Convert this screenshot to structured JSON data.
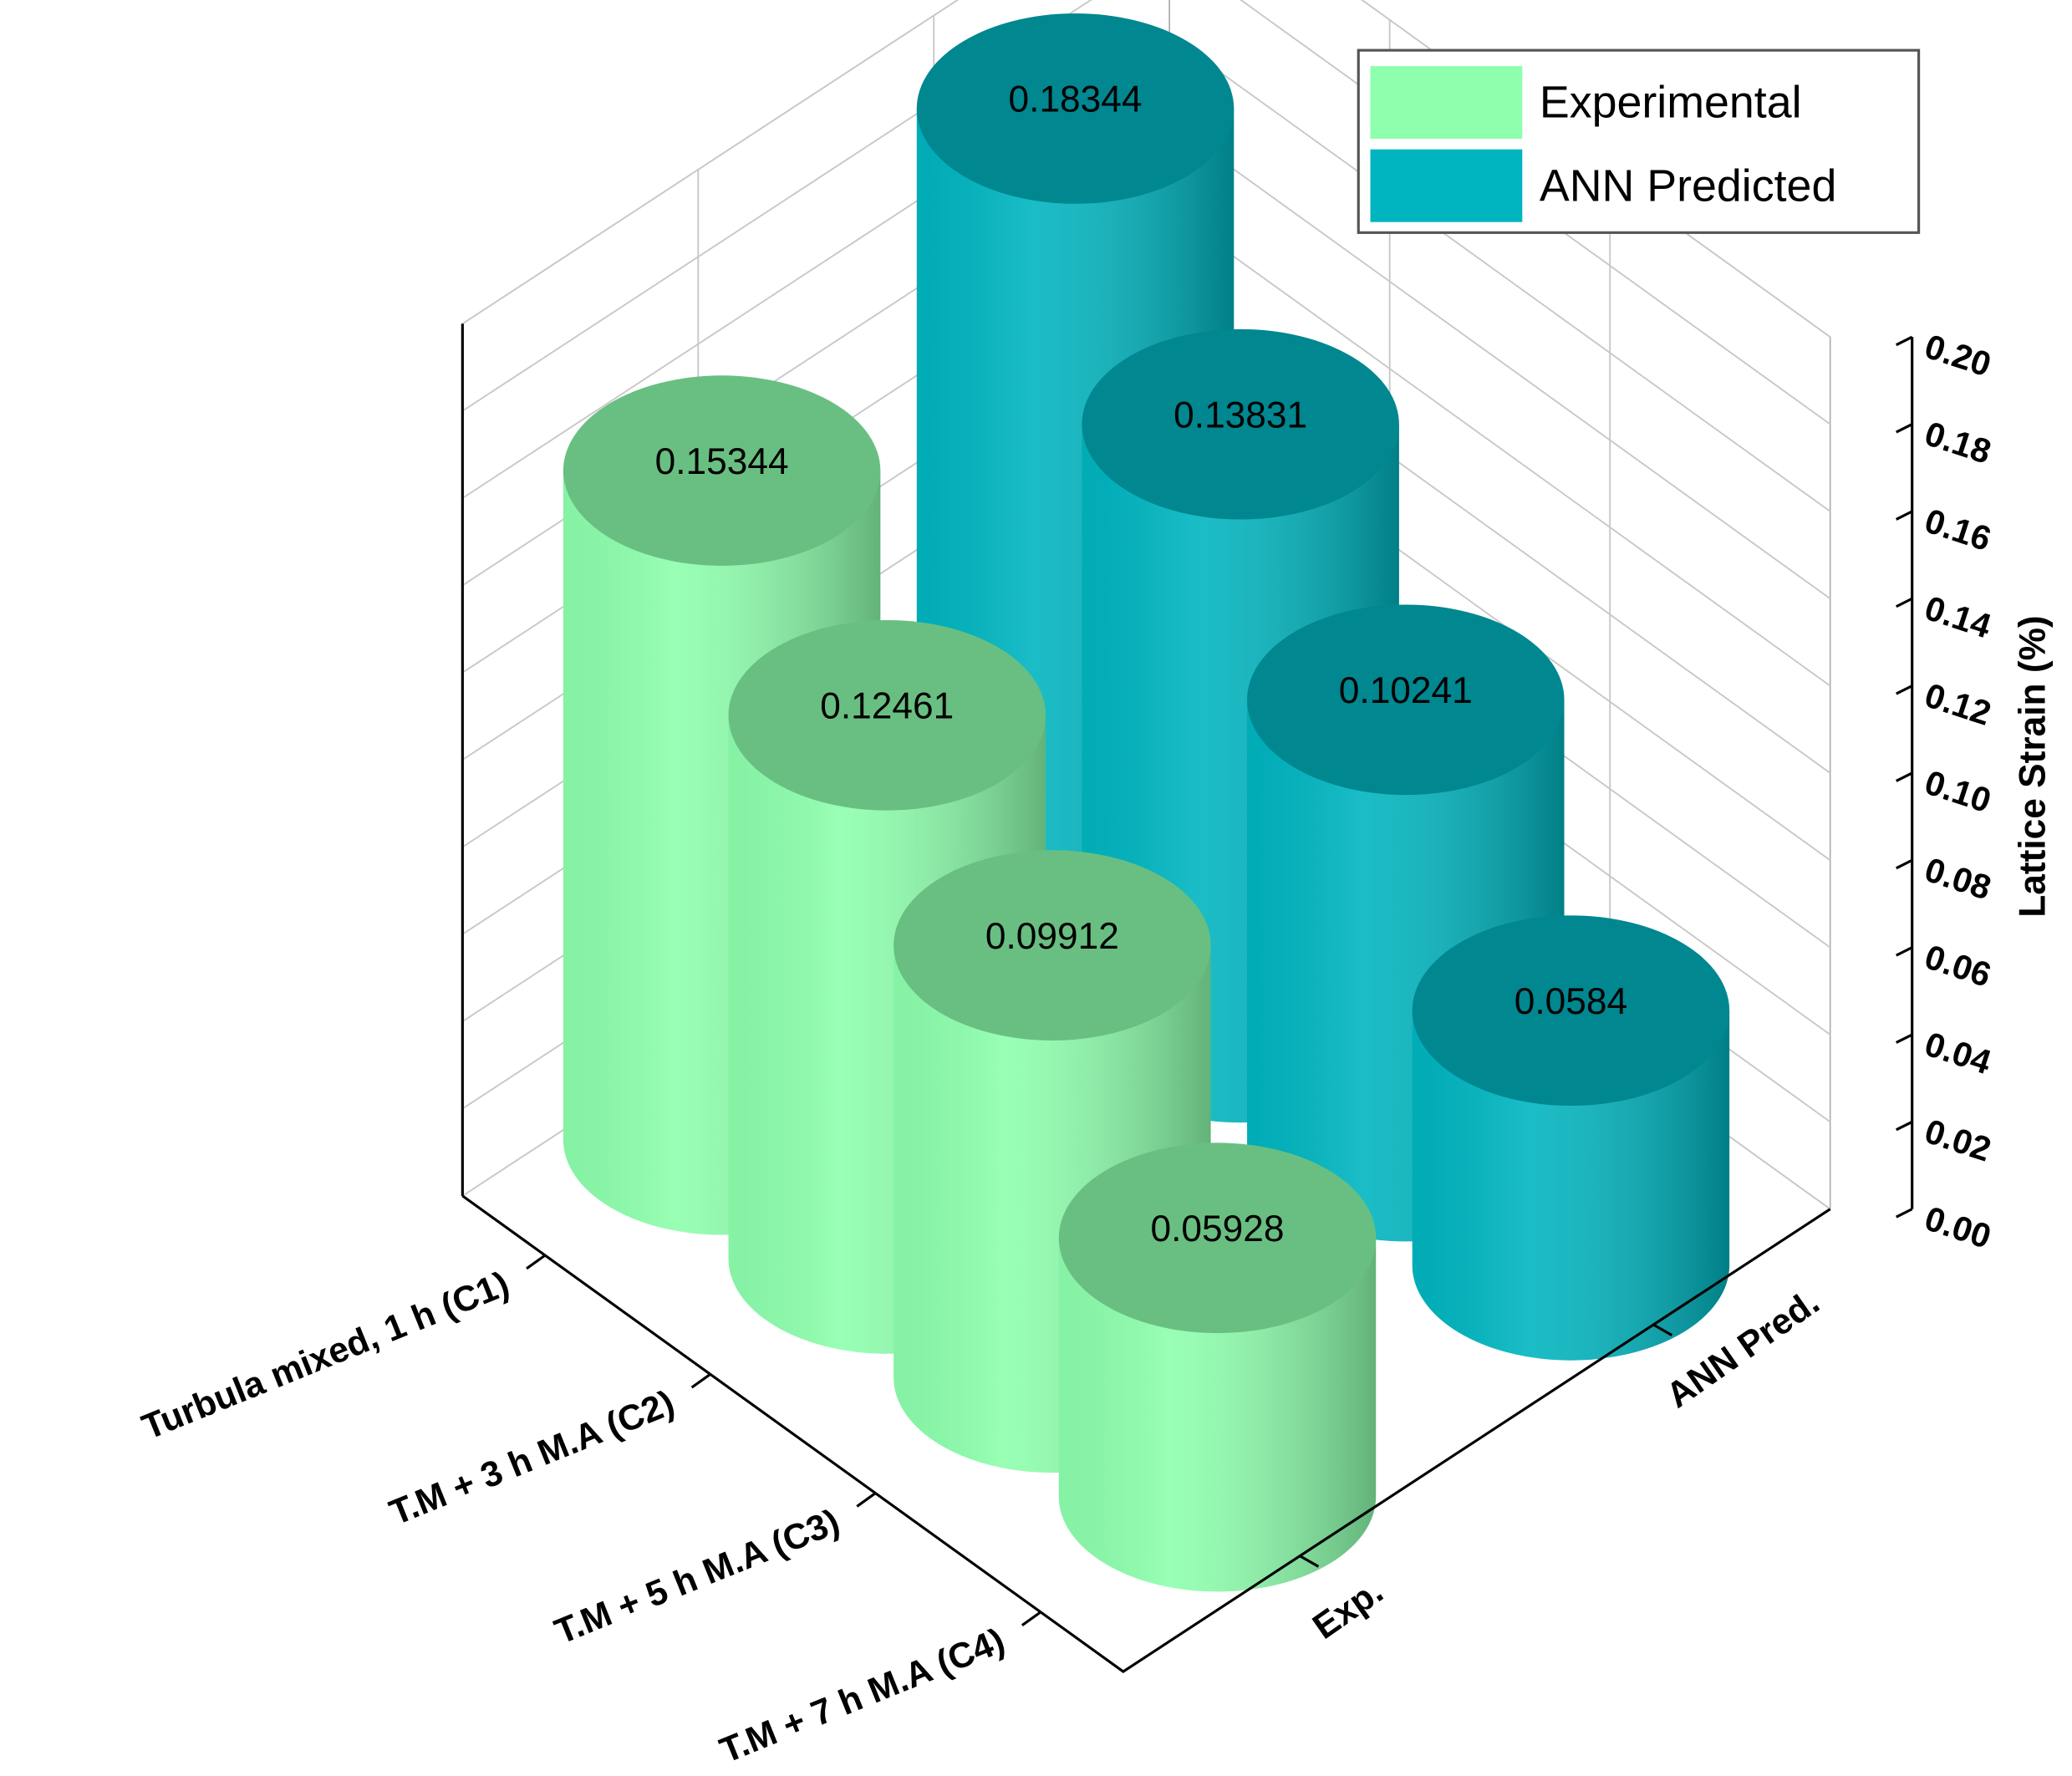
{
  "chart_data": {
    "type": "bar3d",
    "categories": [
      "Turbula mixed, 1 h (C1)",
      "T.M + 3 h M.A (C2)",
      "T.M + 5 h M.A (C3)",
      "T.M + 7 h M.A (C4)"
    ],
    "depth_categories": [
      "Exp.",
      "ANN Pred."
    ],
    "series": [
      {
        "name": "Experimental",
        "color": "#8dffad",
        "values": [
          0.15344,
          0.12461,
          0.09912,
          0.05928
        ]
      },
      {
        "name": "ANN Predicted",
        "color": "#00b5c0",
        "values": [
          0.18344,
          0.13831,
          0.10241,
          0.0584
        ]
      }
    ],
    "zlabel": "Lattice Strain (%)",
    "zlim": [
      0,
      0.2
    ],
    "zticks": [
      {
        "value": 0,
        "label": "0.00"
      },
      {
        "value": 0.02,
        "label": "0.02"
      },
      {
        "value": 0.04,
        "label": "0.04"
      },
      {
        "value": 0.06,
        "label": "0.06"
      },
      {
        "value": 0.08,
        "label": "0.08"
      },
      {
        "value": 0.1,
        "label": "0.10"
      },
      {
        "value": 0.12,
        "label": "0.12"
      },
      {
        "value": 0.14,
        "label": "0.14"
      },
      {
        "value": 0.16,
        "label": "0.16"
      },
      {
        "value": 0.18,
        "label": "0.18"
      },
      {
        "value": 0.2,
        "label": "0.20"
      }
    ],
    "grid": true,
    "legend": "top-right"
  }
}
